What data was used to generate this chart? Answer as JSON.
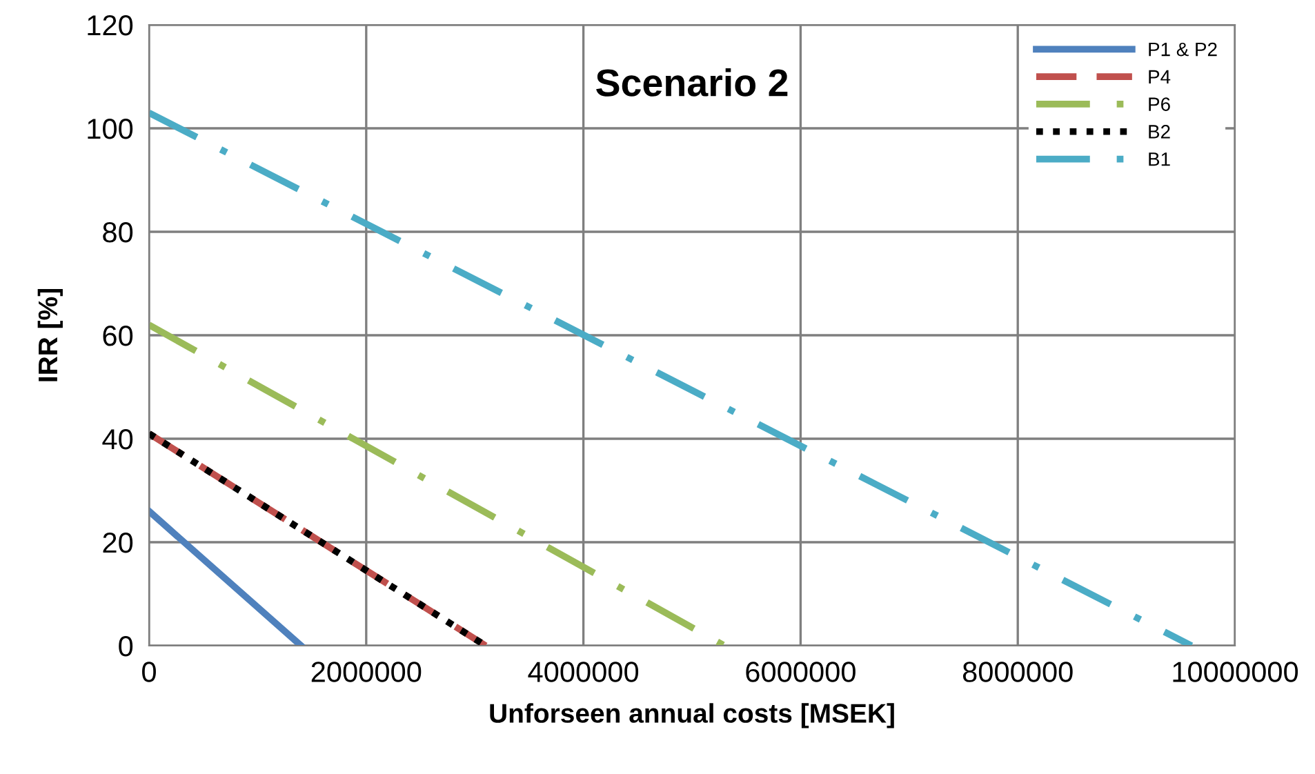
{
  "chart_data": {
    "type": "line",
    "title": "Scenario 2",
    "xlabel": "Unforseen annual costs [MSEK]",
    "ylabel": "IRR [%]",
    "xlim": [
      0,
      10000000
    ],
    "xticks": [
      0,
      2000000,
      4000000,
      6000000,
      8000000,
      10000000
    ],
    "ylim": [
      0,
      120
    ],
    "yticks": [
      0,
      20,
      40,
      60,
      80,
      100,
      120
    ],
    "grid": true,
    "legend": "top right",
    "marker": "none",
    "series": [
      {
        "name": "P1 & P2",
        "color": "#4f81bd",
        "x": [
          0,
          1400000
        ],
        "values": [
          26,
          0
        ],
        "line_style": "solid"
      },
      {
        "name": "P4",
        "color": "#c0504d",
        "x": [
          0,
          3100000
        ],
        "values": [
          41,
          0
        ],
        "line_style": "dashed"
      },
      {
        "name": "P6",
        "color": "#9bbb59",
        "x": [
          0,
          5300000
        ],
        "values": [
          62,
          0
        ],
        "line_style": "dashdot"
      },
      {
        "name": "B2",
        "color": "#000000",
        "x": [
          0,
          3100000
        ],
        "values": [
          41,
          0
        ],
        "line_style": "dotted"
      },
      {
        "name": "B1",
        "color": "#4bacc6",
        "x": [
          0,
          9600000
        ],
        "values": [
          103,
          0
        ],
        "line_style": "longdash"
      }
    ]
  }
}
